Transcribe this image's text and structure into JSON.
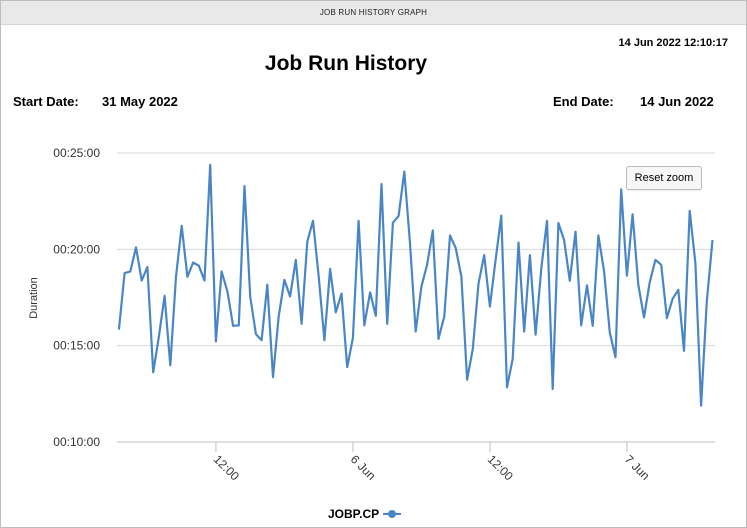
{
  "window": {
    "title": "JOB RUN HISTORY GRAPH"
  },
  "report": {
    "generated_at": "14 Jun 2022 12:10:17",
    "title": "Job Run History",
    "start_date_label": "Start Date:",
    "start_date": "31 May 2022",
    "end_date_label": "End Date:",
    "end_date": "14 Jun 2022"
  },
  "reset_zoom_label": "Reset zoom",
  "chart_data": {
    "type": "line",
    "title": "",
    "xlabel": "",
    "ylabel": "Duration",
    "ylim": [
      "00:10:00",
      "00:25:00"
    ],
    "yticks": [
      "00:10:00",
      "00:15:00",
      "00:20:00",
      "00:25:00"
    ],
    "xlim": [
      "2022-06-05 03:20",
      "2022-06-07 07:43"
    ],
    "xticks": [
      {
        "at": "2022-06-05 12:00",
        "label": "12:00"
      },
      {
        "at": "2022-06-06 00:00",
        "label": "6 Jun"
      },
      {
        "at": "2022-06-06 12:00",
        "label": "12:00"
      },
      {
        "at": "2022-06-07 00:00",
        "label": "7 Jun"
      }
    ],
    "grid": "horizontal",
    "legend": "bottom",
    "color": "#4a86c5",
    "series": [
      {
        "name": "JOBP.CP",
        "x": [
          "2022-06-05 03:30",
          "2022-06-05 04:00",
          "2022-06-05 04:30",
          "2022-06-05 05:00",
          "2022-06-05 05:30",
          "2022-06-05 06:00",
          "2022-06-05 06:30",
          "2022-06-05 07:00",
          "2022-06-05 07:30",
          "2022-06-05 08:00",
          "2022-06-05 08:30",
          "2022-06-05 09:00",
          "2022-06-05 09:30",
          "2022-06-05 10:00",
          "2022-06-05 10:30",
          "2022-06-05 11:00",
          "2022-06-05 11:30",
          "2022-06-05 12:00",
          "2022-06-05 12:30",
          "2022-06-05 13:00",
          "2022-06-05 13:30",
          "2022-06-05 14:00",
          "2022-06-05 14:30",
          "2022-06-05 15:00",
          "2022-06-05 15:30",
          "2022-06-05 16:00",
          "2022-06-05 16:30",
          "2022-06-05 17:00",
          "2022-06-05 17:30",
          "2022-06-05 18:00",
          "2022-06-05 18:30",
          "2022-06-05 19:00",
          "2022-06-05 19:30",
          "2022-06-05 20:00",
          "2022-06-05 20:30",
          "2022-06-05 21:00",
          "2022-06-05 21:30",
          "2022-06-05 22:00",
          "2022-06-05 22:30",
          "2022-06-05 23:00",
          "2022-06-05 23:30",
          "2022-06-06 00:00",
          "2022-06-06 00:30",
          "2022-06-06 01:00",
          "2022-06-06 01:30",
          "2022-06-06 02:00",
          "2022-06-06 02:30",
          "2022-06-06 03:00",
          "2022-06-06 03:30",
          "2022-06-06 04:00",
          "2022-06-06 04:30",
          "2022-06-06 05:00",
          "2022-06-06 05:30",
          "2022-06-06 06:00",
          "2022-06-06 06:30",
          "2022-06-06 07:00",
          "2022-06-06 07:30",
          "2022-06-06 08:00",
          "2022-06-06 08:30",
          "2022-06-06 09:00",
          "2022-06-06 09:30",
          "2022-06-06 10:00",
          "2022-06-06 10:30",
          "2022-06-06 11:00",
          "2022-06-06 11:30",
          "2022-06-06 12:00",
          "2022-06-06 12:30",
          "2022-06-06 13:00",
          "2022-06-06 13:30",
          "2022-06-06 14:00",
          "2022-06-06 14:30",
          "2022-06-06 15:00",
          "2022-06-06 15:30",
          "2022-06-06 16:00",
          "2022-06-06 16:30",
          "2022-06-06 17:00",
          "2022-06-06 17:30",
          "2022-06-06 18:00",
          "2022-06-06 18:30",
          "2022-06-06 19:00",
          "2022-06-06 19:30",
          "2022-06-06 20:00",
          "2022-06-06 20:30",
          "2022-06-06 21:00",
          "2022-06-06 21:30",
          "2022-06-06 22:00",
          "2022-06-06 22:30",
          "2022-06-06 23:00",
          "2022-06-06 23:30",
          "2022-06-07 00:00",
          "2022-06-07 00:30",
          "2022-06-07 01:00",
          "2022-06-07 01:30",
          "2022-06-07 02:00",
          "2022-06-07 02:30",
          "2022-06-07 03:00",
          "2022-06-07 03:30",
          "2022-06-07 04:00",
          "2022-06-07 04:30",
          "2022-06-07 05:00",
          "2022-06-07 05:30",
          "2022-06-07 06:00",
          "2022-06-07 06:30",
          "2022-06-07 07:00",
          "2022-06-07 07:30"
        ],
        "values": [
          "00:15:50",
          "00:18:46",
          "00:18:51",
          "00:20:06",
          "00:18:23",
          "00:19:05",
          "00:13:37",
          "00:15:29",
          "00:17:35",
          "00:13:59",
          "00:18:35",
          "00:21:13",
          "00:18:34",
          "00:19:19",
          "00:19:09",
          "00:18:23",
          "00:24:23",
          "00:15:13",
          "00:18:51",
          "00:17:49",
          "00:16:02",
          "00:16:03",
          "00:23:17",
          "00:17:33",
          "00:15:36",
          "00:15:17",
          "00:18:10",
          "00:13:22",
          "00:16:31",
          "00:18:25",
          "00:17:33",
          "00:19:27",
          "00:16:08",
          "00:20:24",
          "00:21:29",
          "00:18:35",
          "00:15:17",
          "00:18:59",
          "00:16:44",
          "00:17:42",
          "00:13:53",
          "00:15:24",
          "00:21:29",
          "00:16:03",
          "00:17:46",
          "00:16:33",
          "00:23:23",
          "00:16:08",
          "00:21:23",
          "00:21:44",
          "00:24:02",
          "00:20:19",
          "00:15:44",
          "00:18:04",
          "00:19:12",
          "00:20:59",
          "00:15:21",
          "00:16:31",
          "00:20:43",
          "00:20:04",
          "00:18:35",
          "00:13:14",
          "00:14:50",
          "00:18:13",
          "00:19:42",
          "00:17:02",
          "00:19:27",
          "00:21:45",
          "00:12:50",
          "00:14:19",
          "00:20:21",
          "00:15:44",
          "00:19:42",
          "00:15:34",
          "00:19:01",
          "00:21:29",
          "00:12:45",
          "00:21:22",
          "00:20:29",
          "00:18:22",
          "00:20:55",
          "00:16:03",
          "00:18:08",
          "00:16:02",
          "00:20:43",
          "00:18:51",
          "00:15:41",
          "00:14:24",
          "00:23:07",
          "00:18:38",
          "00:21:49",
          "00:18:10",
          "00:16:28",
          "00:18:17",
          "00:19:27",
          "00:19:12",
          "00:16:26",
          "00:17:26",
          "00:17:54",
          "00:14:44",
          "00:22:00",
          "00:19:17",
          "00:11:53",
          "00:17:18",
          "00:20:29"
        ]
      }
    ]
  }
}
